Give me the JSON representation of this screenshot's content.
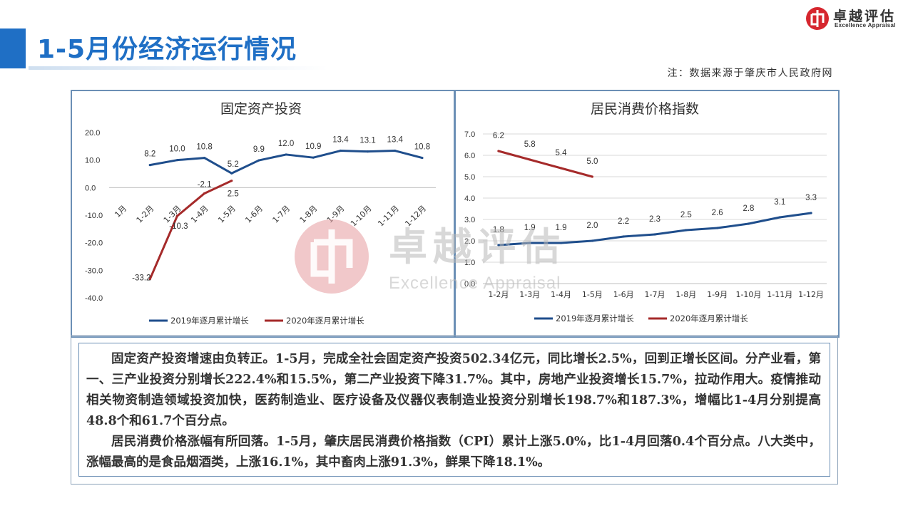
{
  "page": {
    "title": "1-5月份经济运行情况",
    "note": "注：数据来源于肇庆市人民政府网",
    "logo_cn": "卓越评估",
    "logo_en": "Excellence Appraisal",
    "watermark_cn": "卓越评估",
    "watermark_en": "Excellence Appraisal",
    "accent_color": "#1f6fc5"
  },
  "chart_data": [
    {
      "type": "line",
      "title": "固定资产投资",
      "categories": [
        "1月",
        "1-2月",
        "1-3月",
        "1-4月",
        "1-5月",
        "1-6月",
        "1-7月",
        "1-8月",
        "1-9月",
        "1-10月",
        "1-11月",
        "1-12月"
      ],
      "ylim": [
        -40,
        20
      ],
      "yticks": [
        "20.0",
        "10.0",
        "0.0",
        "-10.0",
        "-20.0",
        "-30.0",
        "-40.0"
      ],
      "legend_position": "bottom",
      "series": [
        {
          "name": "2019年逐月累计增长",
          "color": "#1f4e8c",
          "values": [
            null,
            8.2,
            10.0,
            10.8,
            5.2,
            9.9,
            12.0,
            10.9,
            13.4,
            13.1,
            13.4,
            10.8
          ],
          "labels": [
            "",
            "8.2",
            "10.0",
            "10.8",
            "5.2",
            "9.9",
            "12.0",
            "10.9",
            "13.4",
            "13.1",
            "13.4",
            "10.8"
          ]
        },
        {
          "name": "2020年逐月累计增长",
          "color": "#a52a2a",
          "values": [
            null,
            -33.2,
            -10.3,
            -2.1,
            2.5,
            null,
            null,
            null,
            null,
            null,
            null,
            null
          ],
          "labels": [
            "",
            "-33.2",
            "-10.3",
            "-2.1",
            "2.5",
            "",
            "",
            "",
            "",
            "",
            "",
            ""
          ]
        }
      ]
    },
    {
      "type": "line",
      "title": "居民消费价格指数",
      "categories": [
        "1-2月",
        "1-3月",
        "1-4月",
        "1-5月",
        "1-6月",
        "1-7月",
        "1-8月",
        "1-9月",
        "1-10月",
        "1-11月",
        "1-12月"
      ],
      "ylim": [
        0,
        7
      ],
      "yticks": [
        "7.0",
        "6.0",
        "5.0",
        "4.0",
        "3.0",
        "2.0",
        "1.0",
        "0.0"
      ],
      "legend_position": "bottom",
      "series": [
        {
          "name": "2019年逐月累计增长",
          "color": "#1f4e8c",
          "values": [
            1.8,
            1.9,
            1.9,
            2.0,
            2.2,
            2.3,
            2.5,
            2.6,
            2.8,
            3.1,
            3.3
          ],
          "labels": [
            "1.8",
            "1.9",
            "1.9",
            "2.0",
            "2.2",
            "2.3",
            "2.5",
            "2.6",
            "2.8",
            "3.1",
            "3.3"
          ]
        },
        {
          "name": "2020年逐月累计增长",
          "color": "#a52a2a",
          "values": [
            6.2,
            5.8,
            5.4,
            5.0,
            null,
            null,
            null,
            null,
            null,
            null,
            null
          ],
          "labels": [
            "6.2",
            "5.8",
            "5.4",
            "5.0",
            "",
            "",
            "",
            "",
            "",
            "",
            ""
          ]
        }
      ]
    }
  ],
  "text": {
    "para1": "固定资产投资增速由负转正。1-5月，完成全社会固定资产投资502.34亿元，同比增长2.5%，回到正增长区间。分产业看，第一、三产业投资分别增长222.4%和15.5%，第二产业投资下降31.7%。其中，房地产业投资增长15.7%，拉动作用大。疫情推动相关物资制造领域投资加快，医药制造业、医疗设备及仪器仪表制造业投资分别增长198.7%和187.3%，增幅比1-4月分别提高48.8个和61.7个百分点。",
    "para2": "居民消费价格涨幅有所回落。1-5月，肇庆居民消费价格指数（CPI）累计上涨5.0%，比1-4月回落0.4个百分点。八大类中，涨幅最高的是食品烟酒类，上涨16.1%，其中畜肉上涨91.3%，鲜果下降18.1%。"
  }
}
